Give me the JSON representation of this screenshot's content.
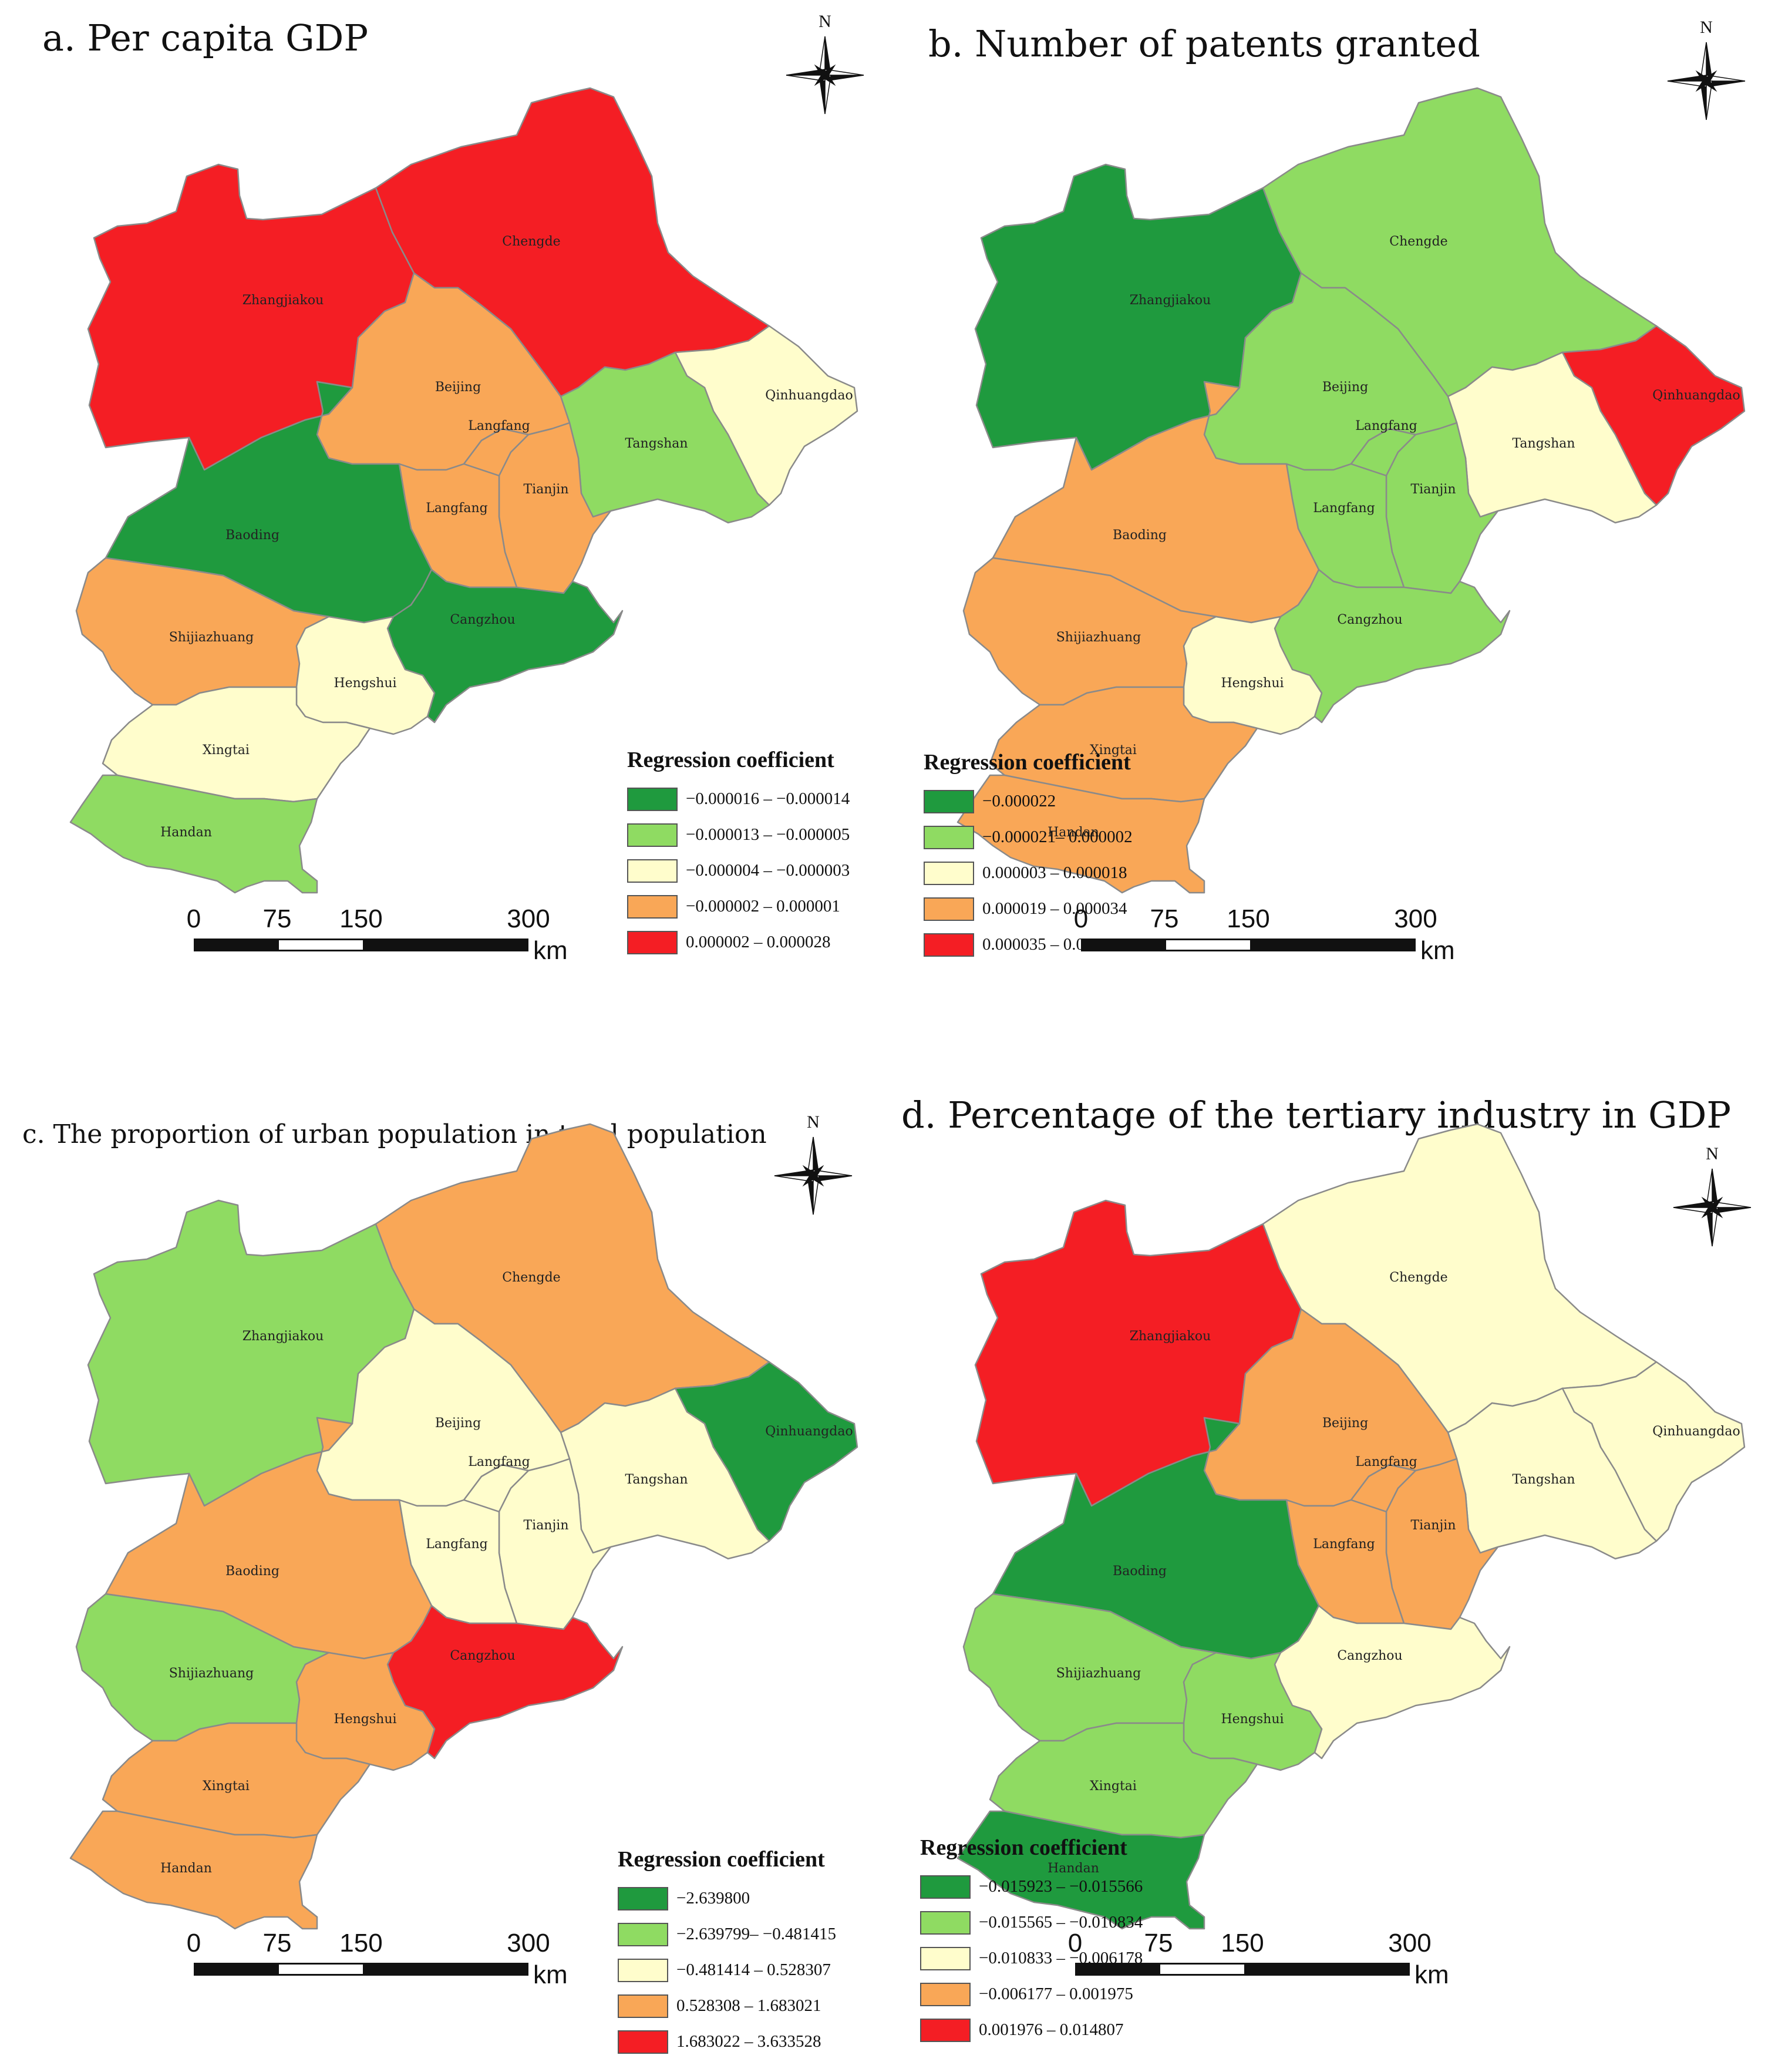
{
  "colors": {
    "dark_green": "#1f9a3e",
    "light_green": "#8fdb62",
    "pale_yellow": "#fffdcc",
    "orange": "#f9a757",
    "red": "#f41e24"
  },
  "scalebar": {
    "ticks": [
      "0",
      "75",
      "150",
      "300"
    ],
    "unit": "km"
  },
  "north_arrow": {
    "letter": "N"
  },
  "panels": [
    {
      "title": "a. Per capita GDP",
      "legend": {
        "title": "Regression coefficient",
        "classes": [
          {
            "label": "−0.000016 – −0.000014",
            "color": "#1f9a3e"
          },
          {
            "label": "−0.000013 – −0.000005",
            "color": "#8fdb62"
          },
          {
            "label": "−0.000004 – −0.000003",
            "color": "#fffdcc"
          },
          {
            "label": "−0.000002 – 0.000001",
            "color": "#f9a757"
          },
          {
            "label": "0.000002 – 0.000028",
            "color": "#f41e24"
          }
        ]
      },
      "regions": {
        "Zhangjiakou": 4,
        "Chengde": 4,
        "Beijing": 3,
        "Langfang_north": 3,
        "Langfang_south": 3,
        "Tianjin": 3,
        "Tangshan": 1,
        "Qinhuangdao": 2,
        "Baoding": 0,
        "Cangzhou": 0,
        "Shijiazhuang": 3,
        "Hengshui": 2,
        "Xingtai": 2,
        "Handan": 1
      }
    },
    {
      "title": "b. Number of patents granted",
      "legend": {
        "title": "Regression coefficient",
        "classes": [
          {
            "label": "−0.000022",
            "color": "#1f9a3e"
          },
          {
            "label": "−0.000021– 0.000002",
            "color": "#8fdb62"
          },
          {
            "label": "0.000003 – 0.000018",
            "color": "#fffdcc"
          },
          {
            "label": "0.000019 – 0.000034",
            "color": "#f9a757"
          },
          {
            "label": "0.000035 – 0.000051",
            "color": "#f41e24"
          }
        ]
      },
      "regions": {
        "Zhangjiakou": 0,
        "Chengde": 1,
        "Beijing": 1,
        "Langfang_north": 1,
        "Langfang_south": 1,
        "Tianjin": 1,
        "Tangshan": 2,
        "Qinhuangdao": 4,
        "Baoding": 3,
        "Cangzhou": 1,
        "Shijiazhuang": 3,
        "Hengshui": 2,
        "Xingtai": 3,
        "Handan": 3
      }
    },
    {
      "title": "c. The proportion of urban population in total population",
      "legend": {
        "title": "Regression coefficient",
        "classes": [
          {
            "label": "−2.639800",
            "color": "#1f9a3e"
          },
          {
            "label": "−2.639799– −0.481415",
            "color": "#8fdb62"
          },
          {
            "label": "−0.481414 – 0.528307",
            "color": "#fffdcc"
          },
          {
            "label": "0.528308 – 1.683021",
            "color": "#f9a757"
          },
          {
            "label": "1.683022 – 3.633528",
            "color": "#f41e24"
          }
        ]
      },
      "regions": {
        "Zhangjiakou": 1,
        "Chengde": 3,
        "Beijing": 2,
        "Langfang_north": 2,
        "Langfang_south": 2,
        "Tianjin": 2,
        "Tangshan": 2,
        "Qinhuangdao": 0,
        "Baoding": 3,
        "Cangzhou": 4,
        "Shijiazhuang": 1,
        "Hengshui": 3,
        "Xingtai": 3,
        "Handan": 3
      }
    },
    {
      "title": "d. Percentage of the tertiary industry in GDP",
      "legend": {
        "title": "Regression coefficient",
        "classes": [
          {
            "label": "−0.015923 – −0.015566",
            "color": "#1f9a3e"
          },
          {
            "label": "−0.015565 – −0.010834",
            "color": "#8fdb62"
          },
          {
            "label": "−0.010833 – −0.006178",
            "color": "#fffdcc"
          },
          {
            "label": "−0.006177 – 0.001975",
            "color": "#f9a757"
          },
          {
            "label": "0.001976 – 0.014807",
            "color": "#f41e24"
          }
        ]
      },
      "regions": {
        "Zhangjiakou": 4,
        "Chengde": 2,
        "Beijing": 3,
        "Langfang_north": 3,
        "Langfang_south": 3,
        "Tianjin": 3,
        "Tangshan": 2,
        "Qinhuangdao": 2,
        "Baoding": 0,
        "Cangzhou": 2,
        "Shijiazhuang": 1,
        "Hengshui": 1,
        "Xingtai": 1,
        "Handan": 0
      }
    }
  ],
  "region_labels": {
    "Zhangjiakou": "Zhangjiakou",
    "Chengde": "Chengde",
    "Beijing": "Beijing",
    "Langfang_north": "Langfang",
    "Langfang_south": "Langfang",
    "Tianjin": "Tianjin",
    "Tangshan": "Tangshan",
    "Qinhuangdao": "Qinhuangdao",
    "Baoding": "Baoding",
    "Cangzhou": "Cangzhou",
    "Shijiazhuang": "Shijiazhuang",
    "Hengshui": "Hengshui",
    "Xingtai": "Xingtai",
    "Handan": "Handan"
  }
}
